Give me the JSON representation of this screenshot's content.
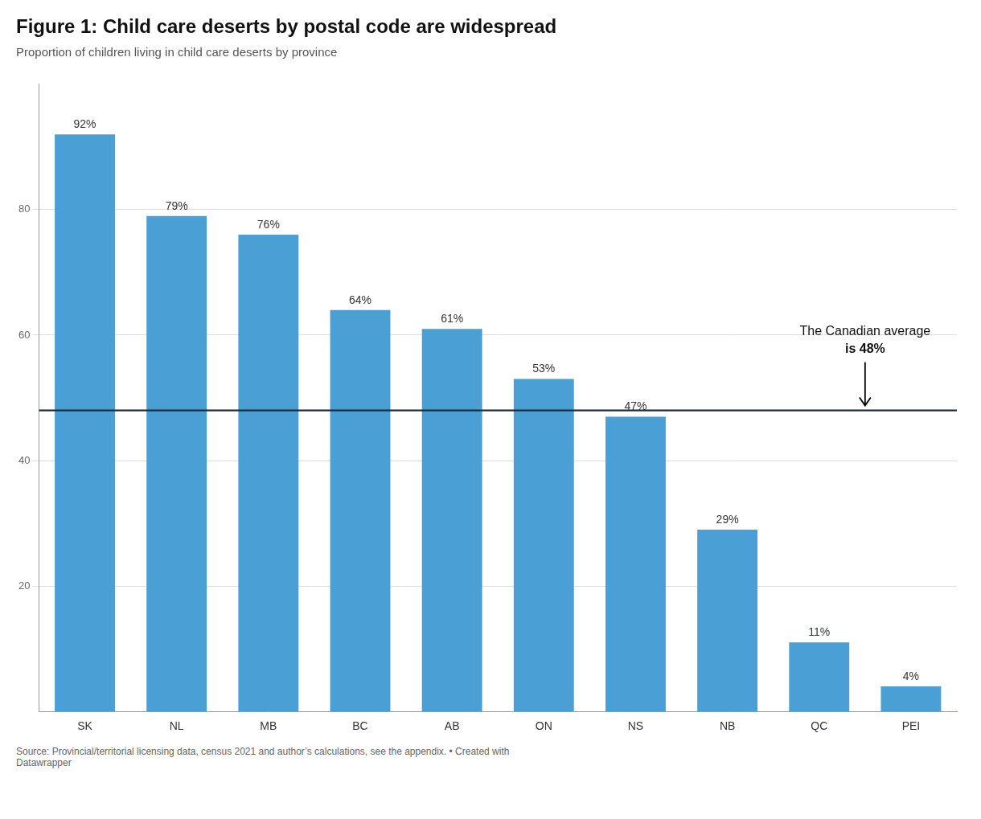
{
  "chart_data": {
    "type": "bar",
    "title": "Figure 1: Child care deserts by postal code are widespread",
    "subtitle": "Proportion of children living in child care deserts by province",
    "source": "Source: Provincial/territorial licensing data, census 2021 and author’s calculations, see the appendix. • Created with\nDatawrapper",
    "categories": [
      "SK",
      "NL",
      "MB",
      "BC",
      "AB",
      "ON",
      "NS",
      "NB",
      "QC",
      "PEI"
    ],
    "values": [
      92,
      79,
      76,
      64,
      61,
      53,
      47,
      29,
      11,
      4
    ],
    "value_labels": [
      "92%",
      "79%",
      "76%",
      "64%",
      "61%",
      "53%",
      "47%",
      "29%",
      "11%",
      "4%"
    ],
    "data_labels": true,
    "color": "#4a9fd4",
    "reference_line": {
      "value": 48,
      "color": "#1c2b3a"
    },
    "annotations": [
      "The Canadian average",
      "is 48%"
    ],
    "ylim": [
      0,
      100
    ],
    "yticks": [
      20,
      40,
      60,
      80
    ],
    "grid": true
  }
}
